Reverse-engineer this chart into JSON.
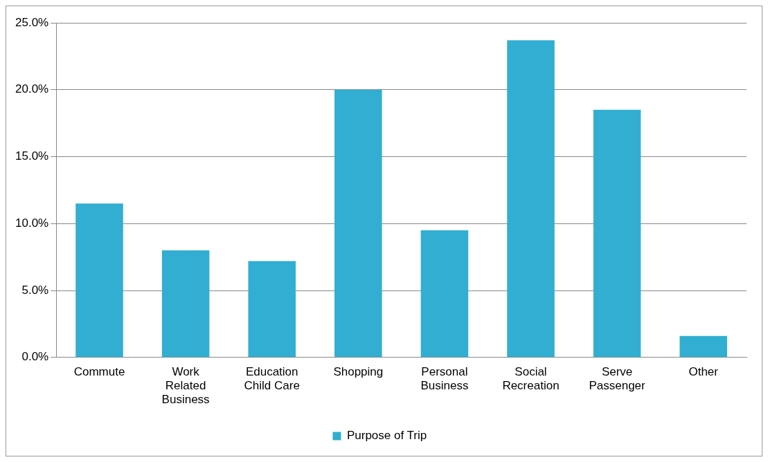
{
  "chart_data": {
    "type": "bar",
    "categories": [
      "Commute",
      "Work Related Business",
      "Education Child Care",
      "Shopping",
      "Personal Business",
      "Social Recreation",
      "Serve Passenger",
      "Other"
    ],
    "series": [
      {
        "name": "Purpose of Trip",
        "color": "#31aed1",
        "values": [
          11.5,
          8.0,
          7.2,
          20.0,
          9.5,
          23.7,
          18.5,
          1.6
        ]
      }
    ],
    "ylim": [
      0,
      25
    ],
    "yticks": [
      {
        "value": 0,
        "label": "0.0%"
      },
      {
        "value": 5,
        "label": "5.0%"
      },
      {
        "value": 10,
        "label": "10.0%"
      },
      {
        "value": 15,
        "label": "15.0%"
      },
      {
        "value": 20,
        "label": "20.0%"
      },
      {
        "value": 25,
        "label": "25.0%"
      }
    ],
    "grid": "y",
    "legend": "bottom"
  }
}
